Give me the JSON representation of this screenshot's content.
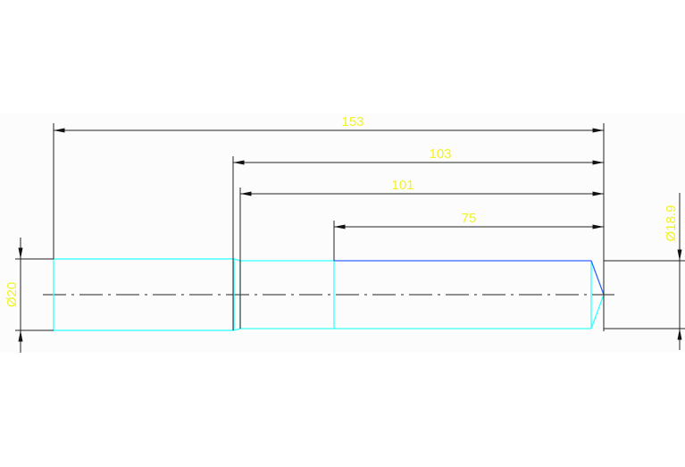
{
  "drawing": {
    "dimensions": {
      "overall_length": "153",
      "length_103": "103",
      "length_101": "101",
      "length_75": "75",
      "diameter_left": "Ø20",
      "diameter_right": "Ø18.9"
    },
    "colors": {
      "outline": "#33ffff",
      "edge_highlight": "#3366ff",
      "dimension_line": "#222222",
      "dimension_text": "#f2f22a",
      "background": "#fbfcfb"
    }
  }
}
